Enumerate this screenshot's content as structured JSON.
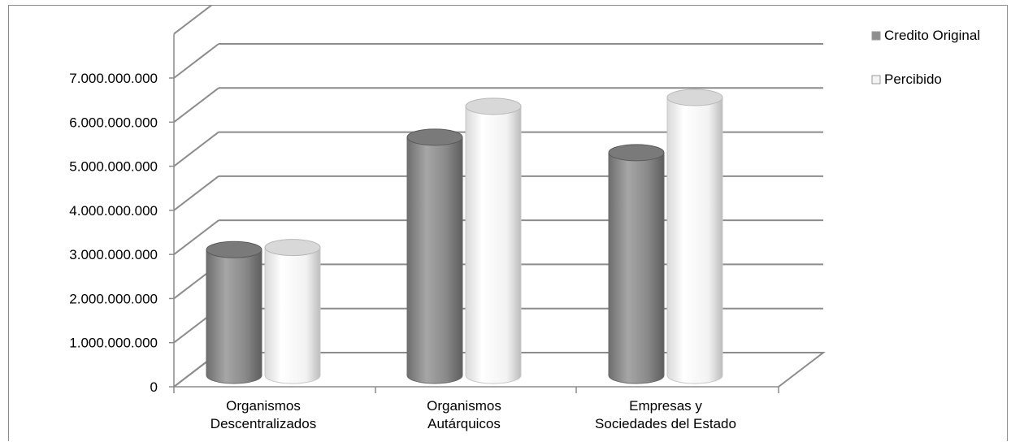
{
  "chart_data": {
    "type": "bar",
    "style": "3d-cylinder",
    "categories": [
      [
        "Organismos",
        "Descentralizados"
      ],
      [
        "Organismos",
        "Autárquicos"
      ],
      [
        "Empresas y",
        "Sociedades del Estado"
      ]
    ],
    "series": [
      {
        "name": "Credito Original",
        "values": [
          2850000000,
          5400000000,
          5050000000
        ],
        "color": "#8e8e8e"
      },
      {
        "name": "Percibido",
        "values": [
          2900000000,
          6100000000,
          6300000000
        ],
        "color": "#f4f4f4"
      }
    ],
    "ylim": [
      0,
      7000000000
    ],
    "yticks": [
      "0",
      "1.000.000.000",
      "2.000.000.000",
      "3.000.000.000",
      "4.000.000.000",
      "5.000.000.000",
      "6.000.000.000",
      "7.000.000.000"
    ],
    "grid": true,
    "legend_position": "top-right"
  }
}
